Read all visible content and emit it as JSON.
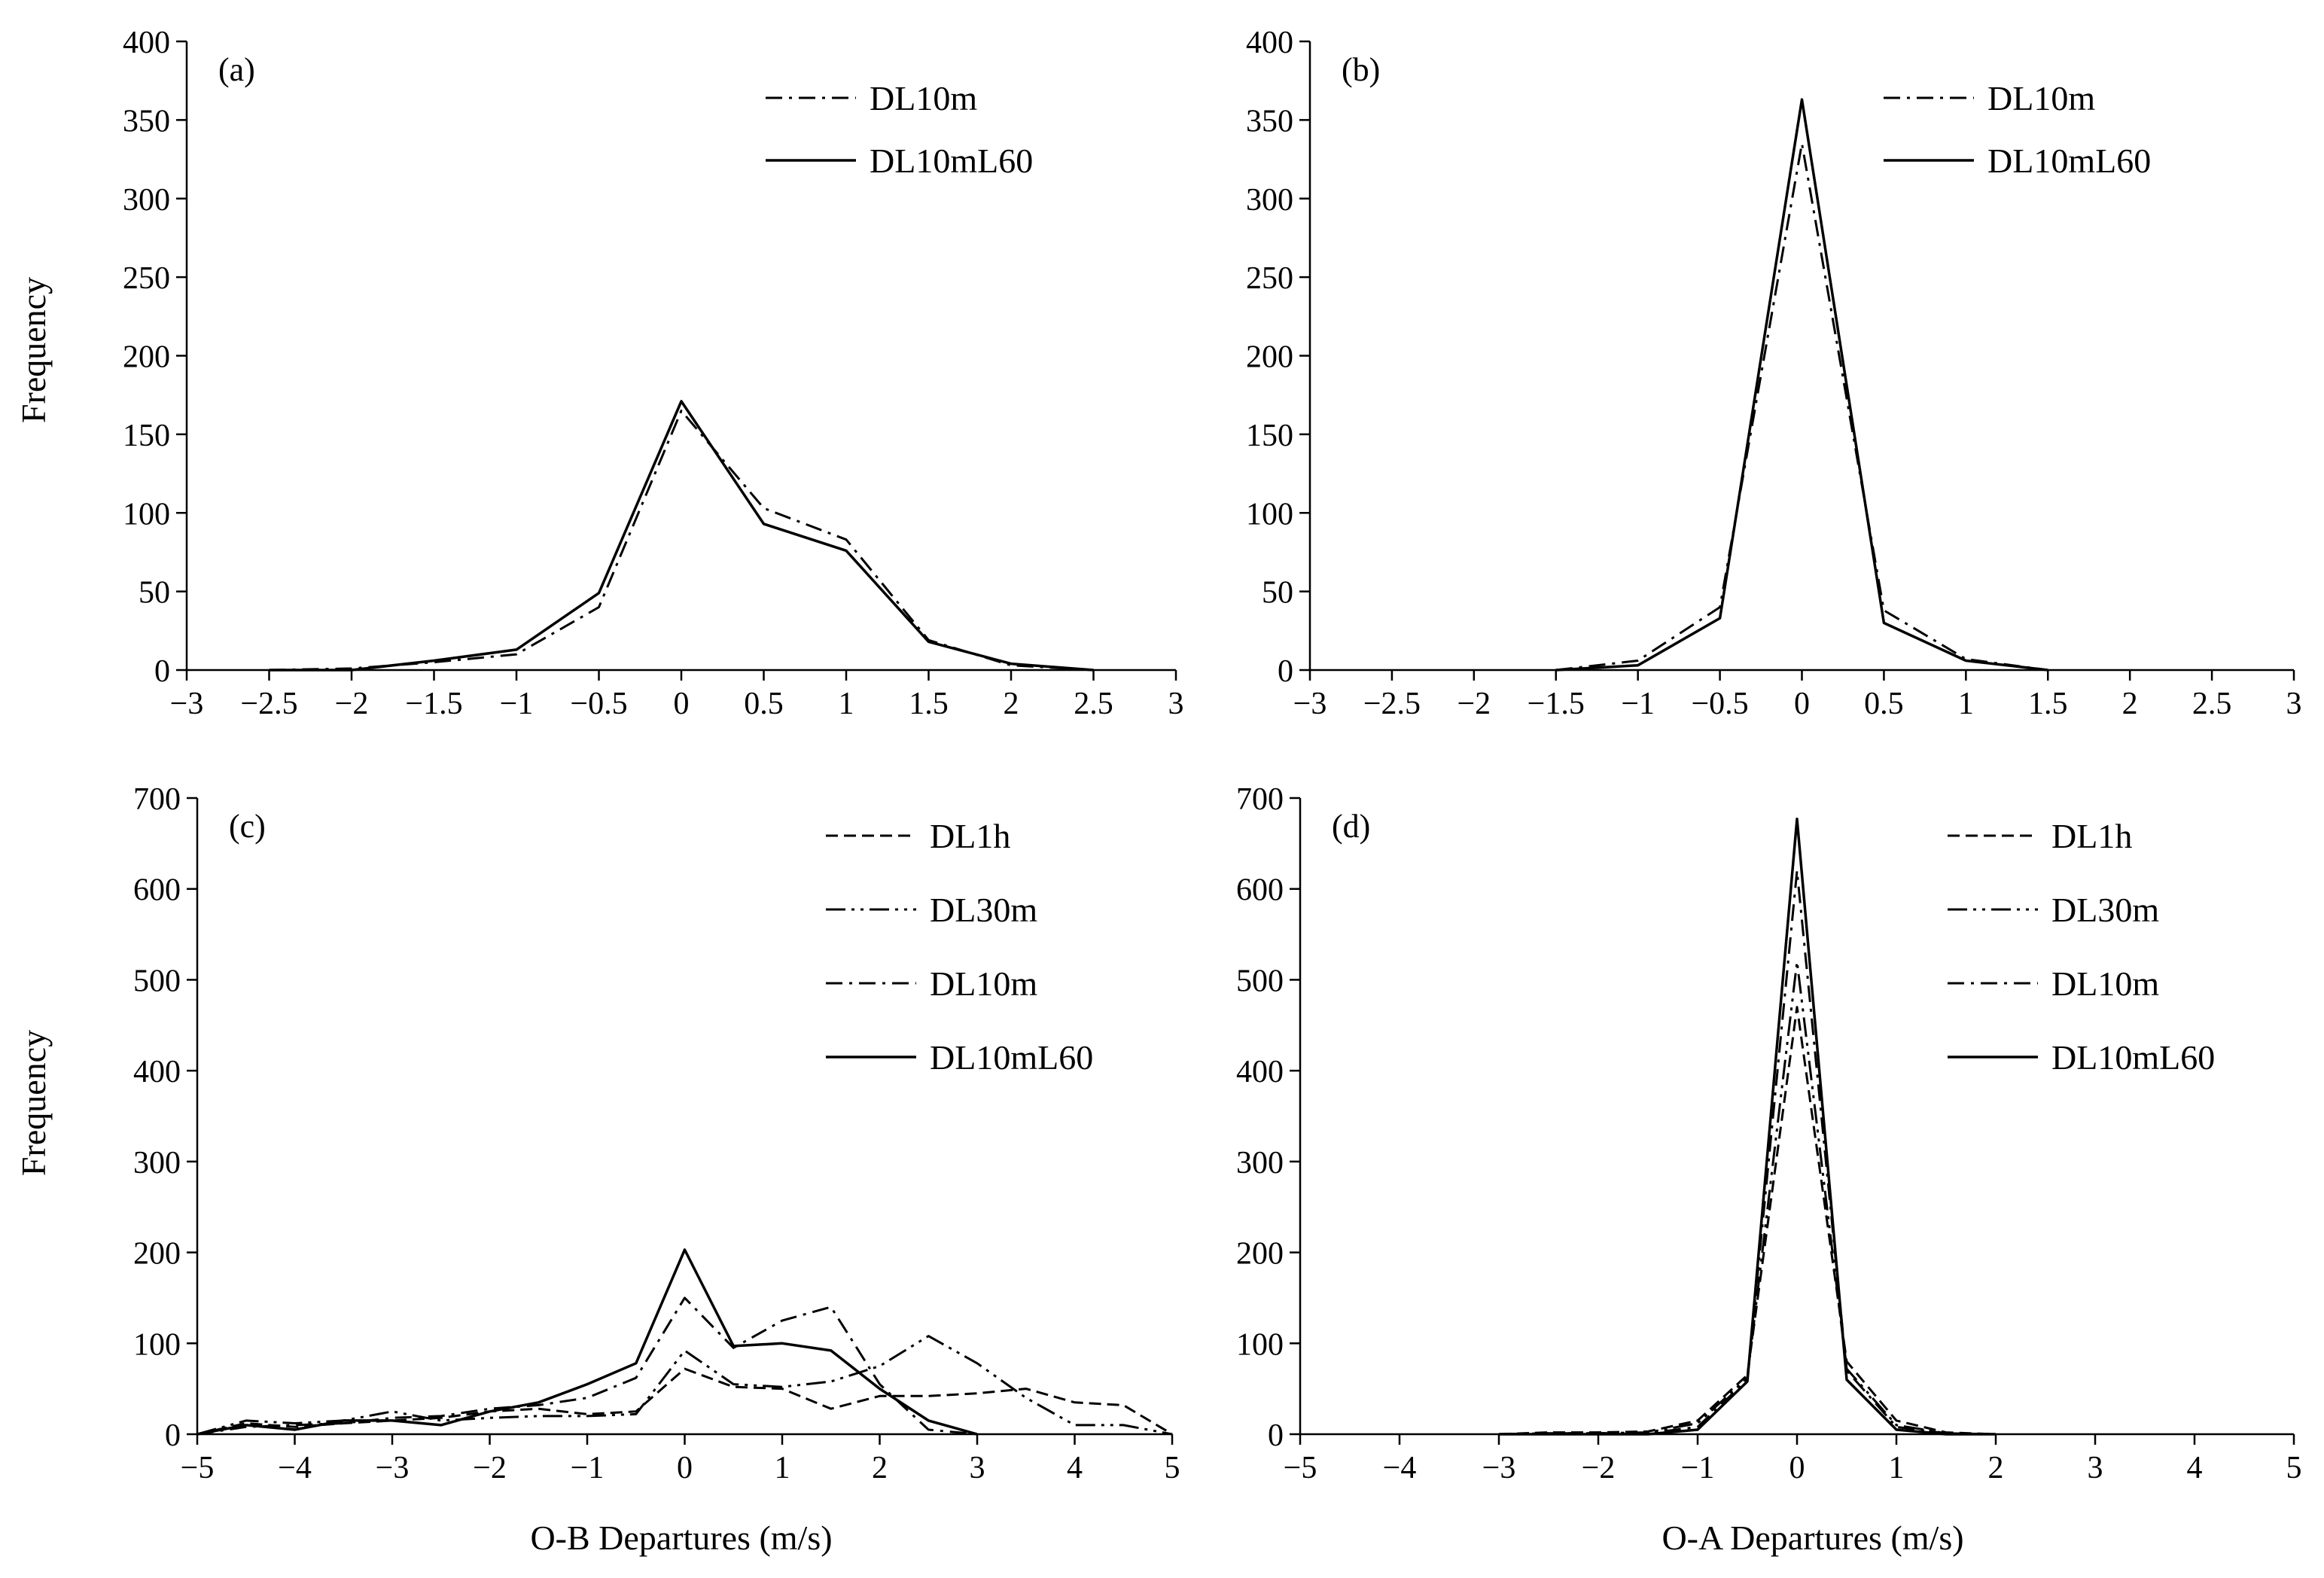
{
  "figure": {
    "y_title_left": "Frequency",
    "x_title_left": "O-B Departures (m/s)",
    "x_title_right": "O-A Departures (m/s)"
  },
  "chart_data": [
    {
      "panel": "(a)",
      "type": "line",
      "xlim": [
        -3,
        3
      ],
      "ylim": [
        0,
        400
      ],
      "xticks": [
        -3,
        -2.5,
        -2,
        -1.5,
        -1,
        -0.5,
        0,
        0.5,
        1,
        1.5,
        2,
        2.5,
        3
      ],
      "xtick_labels": [
        "−3",
        "−2.5",
        "−2",
        "−1.5",
        "−1",
        "−0.5",
        "0",
        "0.5",
        "1",
        "1.5",
        "2",
        "2.5",
        "3"
      ],
      "yticks": [
        0,
        50,
        100,
        150,
        200,
        250,
        300,
        350,
        400
      ],
      "xlabel": "",
      "ylabel": "Frequency",
      "legend": "top-right",
      "series": [
        {
          "name": "DL10m",
          "style": "dashdot",
          "x": [
            -2.5,
            -2,
            -1.5,
            -1,
            -0.5,
            0,
            0.5,
            1,
            1.5,
            2,
            2.5
          ],
          "values": [
            0,
            1,
            5,
            10,
            40,
            165,
            103,
            83,
            19,
            3,
            0
          ]
        },
        {
          "name": "DL10mL60",
          "style": "solid",
          "x": [
            -2.5,
            -2,
            -1.5,
            -1,
            -0.5,
            0,
            0.5,
            1,
            1.5,
            2,
            2.5
          ],
          "values": [
            0,
            0,
            6,
            13,
            49,
            171,
            93,
            76,
            18,
            4,
            0
          ]
        }
      ]
    },
    {
      "panel": "(b)",
      "type": "line",
      "xlim": [
        -3,
        3
      ],
      "ylim": [
        0,
        400
      ],
      "xticks": [
        -3,
        -2.5,
        -2,
        -1.5,
        -1,
        -0.5,
        0,
        0.5,
        1,
        1.5,
        2,
        2.5,
        3
      ],
      "xtick_labels": [
        "−3",
        "−2.5",
        "−2",
        "−1.5",
        "−1",
        "−0.5",
        "0",
        "0.5",
        "1",
        "1.5",
        "2",
        "2.5",
        "3"
      ],
      "yticks": [
        0,
        50,
        100,
        150,
        200,
        250,
        300,
        350,
        400
      ],
      "xlabel": "",
      "ylabel": "",
      "legend": "top-right",
      "series": [
        {
          "name": "DL10m",
          "style": "dashdot",
          "x": [
            -1.5,
            -1,
            -0.5,
            0,
            0.5,
            1,
            1.5
          ],
          "values": [
            0,
            6,
            40,
            335,
            38,
            7,
            0
          ]
        },
        {
          "name": "DL10mL60",
          "style": "solid",
          "x": [
            -1.5,
            -1,
            -0.5,
            0,
            0.5,
            1,
            1.5
          ],
          "values": [
            0,
            3,
            33,
            363,
            30,
            6,
            0
          ]
        }
      ]
    },
    {
      "panel": "(c)",
      "type": "line",
      "xlim": [
        -5,
        5
      ],
      "ylim": [
        0,
        700
      ],
      "xticks": [
        -5,
        -4,
        -3,
        -2,
        -1,
        0,
        1,
        2,
        3,
        4,
        5
      ],
      "xtick_labels": [
        "−5",
        "−4",
        "−3",
        "−2",
        "−1",
        "0",
        "1",
        "2",
        "3",
        "4",
        "5"
      ],
      "yticks": [
        0,
        100,
        200,
        300,
        400,
        500,
        600,
        700
      ],
      "xlabel": "O-B Departures (m/s)",
      "ylabel": "Frequency",
      "legend": "top-right",
      "series": [
        {
          "name": "DL1h",
          "style": "dashed",
          "x": [
            -5,
            -4.5,
            -4,
            -3.5,
            -3,
            -2.5,
            -2,
            -1.5,
            -1,
            -0.5,
            0,
            0.5,
            1,
            1.5,
            2,
            2.5,
            3,
            3.5,
            4,
            4.5,
            5
          ],
          "values": [
            0,
            12,
            8,
            12,
            15,
            18,
            25,
            28,
            22,
            25,
            72,
            52,
            50,
            28,
            42,
            42,
            45,
            50,
            35,
            32,
            0
          ]
        },
        {
          "name": "DL30m",
          "style": "dashdotdot",
          "x": [
            -5,
            -4.5,
            -4,
            -3.5,
            -3,
            -2.5,
            -2,
            -1.5,
            -1,
            -0.5,
            0,
            0.5,
            1,
            1.5,
            2,
            2.5,
            3,
            3.5,
            4,
            4.5,
            5
          ],
          "values": [
            0,
            15,
            12,
            15,
            25,
            15,
            18,
            20,
            20,
            22,
            92,
            55,
            52,
            58,
            75,
            108,
            78,
            40,
            10,
            10,
            0
          ]
        },
        {
          "name": "DL10m",
          "style": "dashdot",
          "x": [
            -5,
            -4.5,
            -4,
            -3.5,
            -3,
            -2.5,
            -2,
            -1.5,
            -1,
            -0.5,
            0,
            0.5,
            1,
            1.5,
            2,
            2.5,
            3
          ],
          "values": [
            0,
            8,
            10,
            12,
            18,
            20,
            28,
            32,
            40,
            62,
            150,
            95,
            125,
            140,
            55,
            5,
            0
          ]
        },
        {
          "name": "DL10mL60",
          "style": "solid",
          "x": [
            -5,
            -4.5,
            -4,
            -3.5,
            -3,
            -2.5,
            -2,
            -1.5,
            -1,
            -0.5,
            0,
            0.5,
            1,
            1.5,
            2,
            2.5,
            3
          ],
          "values": [
            0,
            10,
            5,
            15,
            15,
            10,
            25,
            35,
            55,
            78,
            203,
            97,
            100,
            92,
            50,
            15,
            0
          ]
        }
      ]
    },
    {
      "panel": "(d)",
      "type": "line",
      "xlim": [
        -5,
        5
      ],
      "ylim": [
        0,
        700
      ],
      "xticks": [
        -5,
        -4,
        -3,
        -2,
        -1,
        0,
        1,
        2,
        3,
        4,
        5
      ],
      "xtick_labels": [
        "−5",
        "−4",
        "−3",
        "−2",
        "−1",
        "0",
        "1",
        "2",
        "3",
        "4",
        "5"
      ],
      "yticks": [
        0,
        100,
        200,
        300,
        400,
        500,
        600,
        700
      ],
      "xlabel": "O-A Departures (m/s)",
      "ylabel": "",
      "legend": "top-right",
      "series": [
        {
          "name": "DL1h",
          "style": "dashed",
          "x": [
            -3,
            -2.5,
            -2,
            -1.5,
            -1,
            -0.5,
            0,
            0.5,
            1,
            1.5,
            2
          ],
          "values": [
            0,
            2,
            2,
            3,
            15,
            65,
            470,
            80,
            15,
            2,
            0
          ]
        },
        {
          "name": "DL30m",
          "style": "dashdotdot",
          "x": [
            -3,
            -2.5,
            -2,
            -1.5,
            -1,
            -0.5,
            0,
            0.5,
            1,
            1.5,
            2
          ],
          "values": [
            0,
            1,
            1,
            2,
            12,
            62,
            520,
            72,
            10,
            1,
            0
          ]
        },
        {
          "name": "DL10m",
          "style": "dashdot",
          "x": [
            -3,
            -2.5,
            -2,
            -1.5,
            -1,
            -0.5,
            0,
            0.5,
            1,
            1.5,
            2
          ],
          "values": [
            0,
            1,
            1,
            1,
            8,
            60,
            620,
            70,
            8,
            1,
            0
          ]
        },
        {
          "name": "DL10mL60",
          "style": "solid",
          "x": [
            -3,
            -2.5,
            -2,
            -1.5,
            -1,
            -0.5,
            0,
            0.5,
            1,
            1.5,
            2
          ],
          "values": [
            0,
            0,
            0,
            0,
            5,
            58,
            677,
            60,
            5,
            0,
            0
          ]
        }
      ]
    }
  ]
}
